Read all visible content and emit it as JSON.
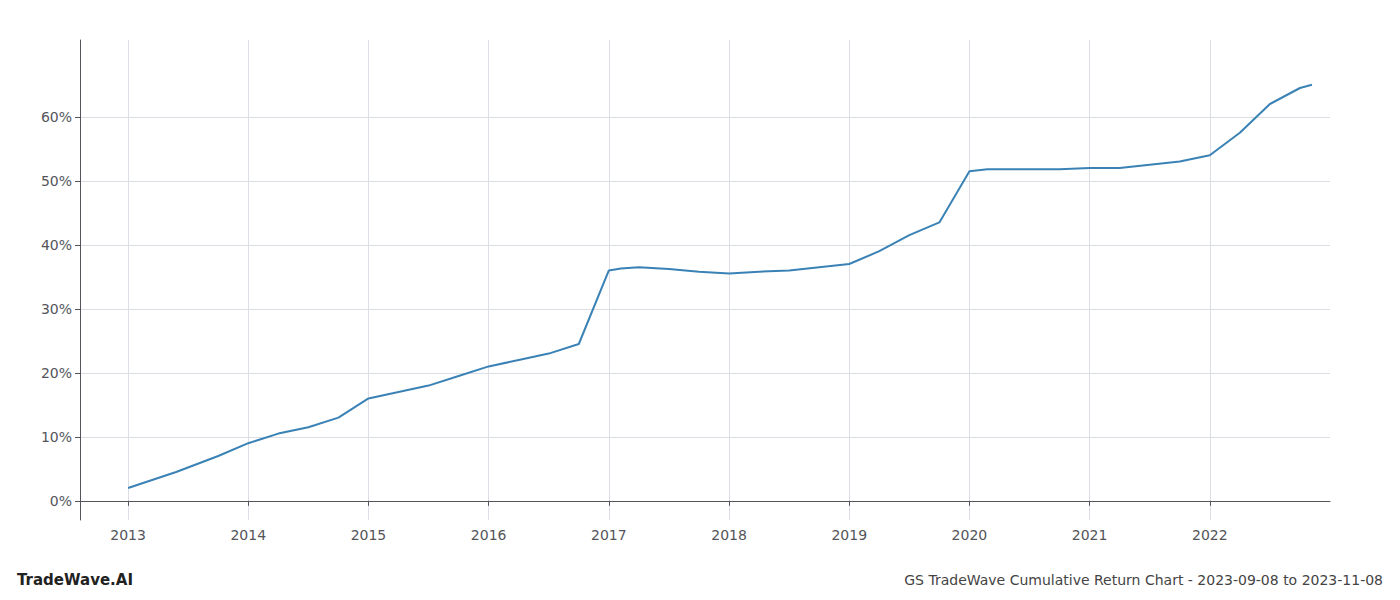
{
  "chart_data": {
    "type": "line",
    "title": "GS TradeWave Cumulative Return Chart - 2023-09-08 to 2023-11-08",
    "annotations": [
      "TradeWave.AI"
    ],
    "x": [
      2013.0,
      2013.4,
      2013.75,
      2014.0,
      2014.25,
      2014.5,
      2014.75,
      2015.0,
      2015.25,
      2015.5,
      2015.75,
      2016.0,
      2016.25,
      2016.5,
      2016.75,
      2017.0,
      2017.1,
      2017.25,
      2017.5,
      2017.75,
      2018.0,
      2018.25,
      2018.5,
      2018.75,
      2019.0,
      2019.25,
      2019.5,
      2019.75,
      2020.0,
      2020.15,
      2020.3,
      2020.5,
      2020.75,
      2021.0,
      2021.25,
      2021.5,
      2021.75,
      2022.0,
      2022.25,
      2022.5,
      2022.75,
      2022.85
    ],
    "values": [
      2.0,
      4.5,
      7.0,
      9.0,
      10.5,
      11.5,
      13.0,
      16.0,
      17.0,
      18.0,
      19.5,
      21.0,
      22.0,
      23.0,
      24.5,
      36.0,
      36.3,
      36.5,
      36.2,
      35.8,
      35.5,
      35.8,
      36.0,
      36.5,
      37.0,
      39.0,
      41.5,
      43.5,
      51.5,
      51.8,
      51.8,
      51.8,
      51.8,
      52.0,
      52.0,
      52.5,
      53.0,
      54.0,
      57.5,
      62.0,
      64.5,
      65.0
    ],
    "color": "#3a82b5",
    "xlim": [
      2012.6,
      2023.0
    ],
    "xticks": [
      2013,
      2014,
      2015,
      2016,
      2017,
      2018,
      2019,
      2020,
      2021,
      2022
    ],
    "ylim": [
      -3,
      72
    ],
    "yticks": [
      {
        "value": 0,
        "label": "0%"
      },
      {
        "value": 10,
        "label": "10%"
      },
      {
        "value": 20,
        "label": "20%"
      },
      {
        "value": 30,
        "label": "30%"
      },
      {
        "value": 40,
        "label": "40%"
      },
      {
        "value": 50,
        "label": "50%"
      },
      {
        "value": 60,
        "label": "60%"
      }
    ],
    "grid": true
  }
}
